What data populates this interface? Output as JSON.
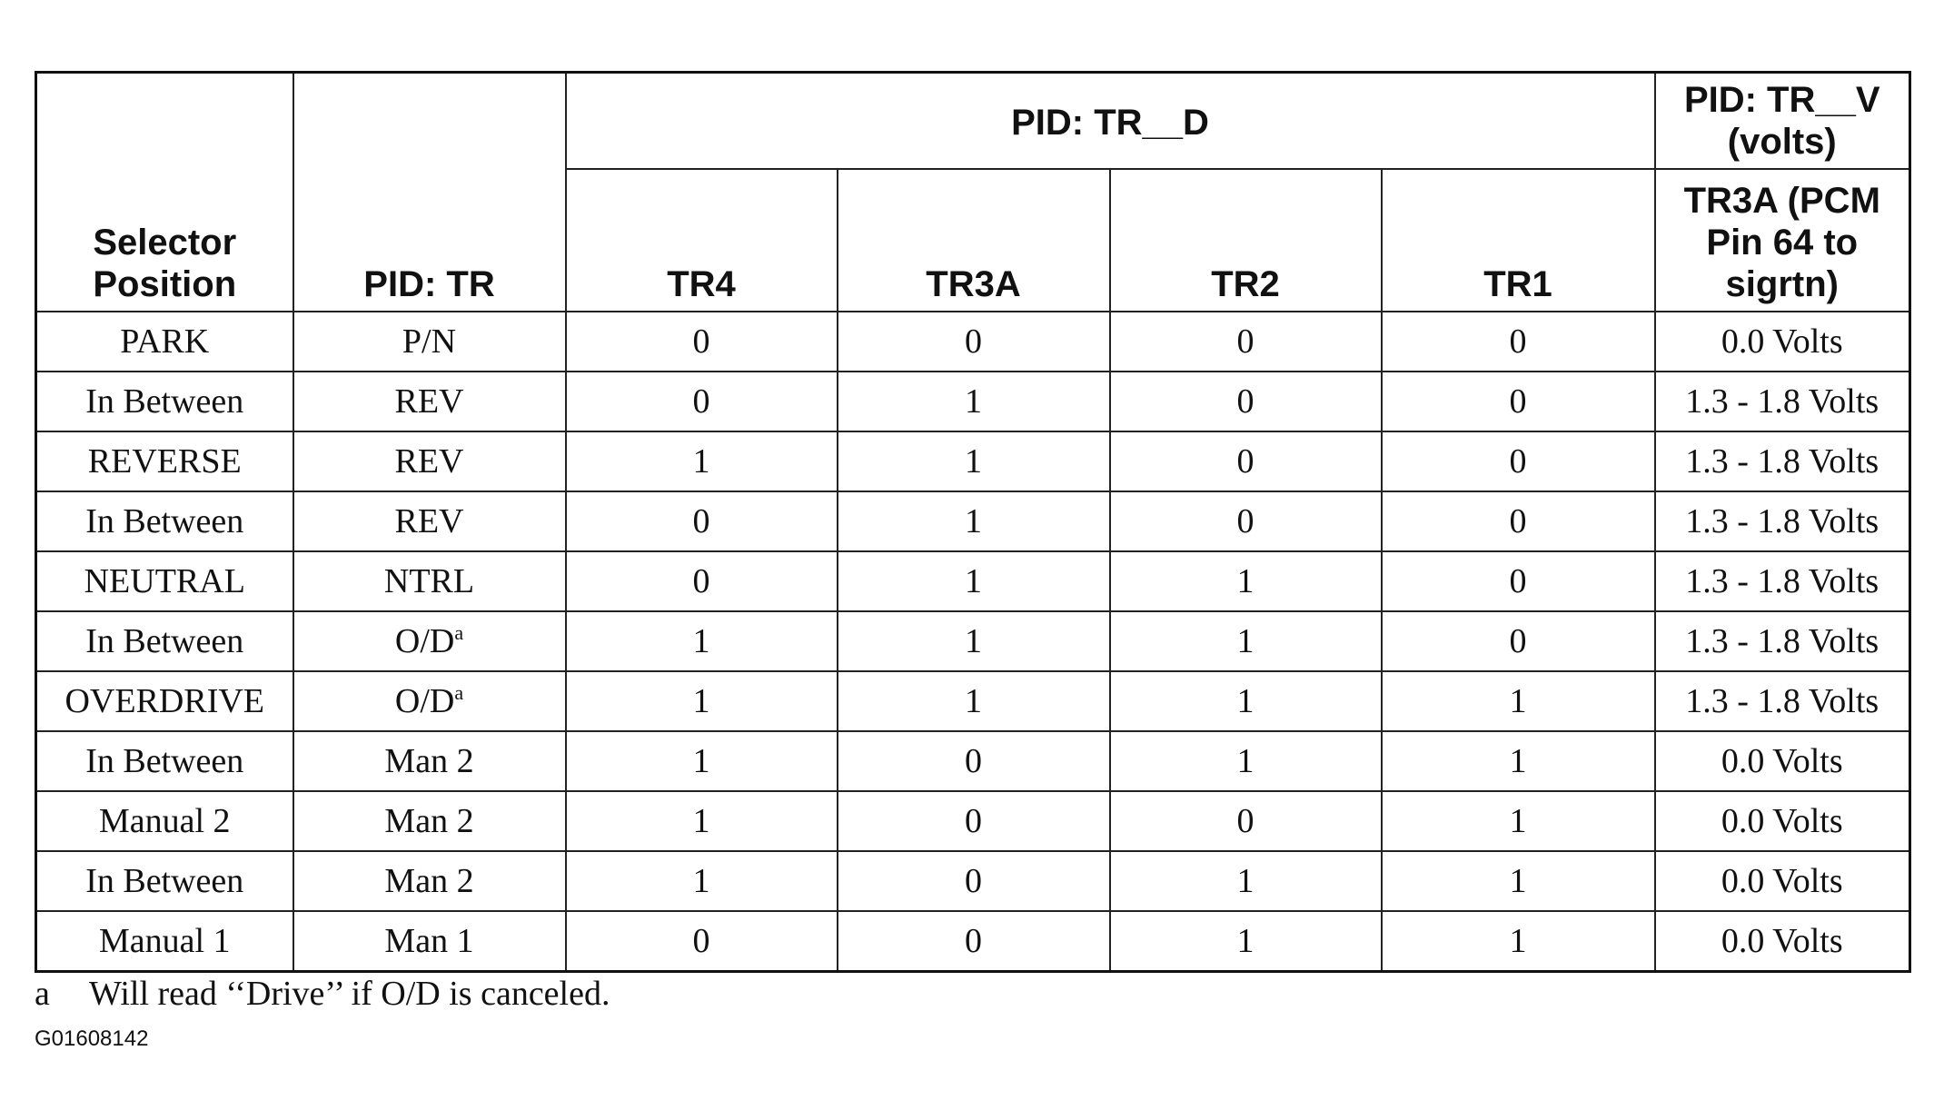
{
  "table": {
    "header": {
      "selector": "Selector Position",
      "pid_tr": "PID: TR",
      "pid_tr_d": "PID: TR__D",
      "pid_tr_v": "PID: TR__V (volts)",
      "columns": [
        "TR4",
        "TR3A",
        "TR2",
        "TR1"
      ],
      "tr3a_volts": "TR3A (PCM Pin 64 to sigrtn)"
    },
    "rows": [
      [
        "PARK",
        "P/N",
        "0",
        "0",
        "0",
        "0",
        "0.0 Volts"
      ],
      [
        "In Between",
        "REV",
        "0",
        "1",
        "0",
        "0",
        "1.3 - 1.8 Volts"
      ],
      [
        "REVERSE",
        "REV",
        "1",
        "1",
        "0",
        "0",
        "1.3 - 1.8 Volts"
      ],
      [
        "In Between",
        "REV",
        "0",
        "1",
        "0",
        "0",
        "1.3 - 1.8 Volts"
      ],
      [
        "NEUTRAL",
        "NTRL",
        "0",
        "1",
        "1",
        "0",
        "1.3 - 1.8 Volts"
      ],
      [
        "In Between",
        {
          "text": "O/D",
          "sup": "a"
        },
        "1",
        "1",
        "1",
        "0",
        "1.3 - 1.8 Volts"
      ],
      [
        "OVERDRIVE",
        {
          "text": "O/D",
          "sup": "a"
        },
        "1",
        "1",
        "1",
        "1",
        "1.3 - 1.8 Volts"
      ],
      [
        "In Between",
        "Man 2",
        "1",
        "0",
        "1",
        "1",
        "0.0 Volts"
      ],
      [
        "Manual 2",
        "Man 2",
        "1",
        "0",
        "0",
        "1",
        "0.0 Volts"
      ],
      [
        "In Between",
        "Man 2",
        "1",
        "0",
        "1",
        "1",
        "0.0 Volts"
      ],
      [
        "Manual 1",
        "Man 1",
        "0",
        "0",
        "1",
        "1",
        "0.0 Volts"
      ]
    ]
  },
  "footnote": {
    "mark": "a",
    "text": "Will read ‘‘Drive’’ if O/D is canceled."
  },
  "figure_id": "G01608142"
}
